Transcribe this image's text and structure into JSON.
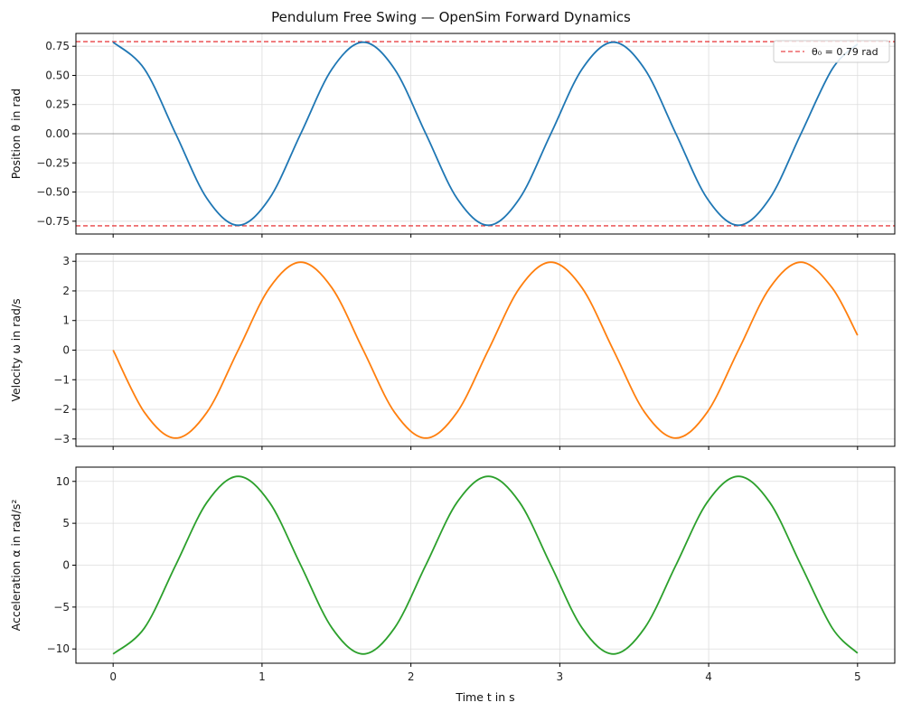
{
  "figure": {
    "title": "Pendulum Free Swing — OpenSim Forward Dynamics",
    "xlabel": "Time t in s"
  },
  "chart_data": [
    {
      "type": "line",
      "ylabel": "Position θ in rad",
      "xlim": [
        -0.25,
        5.25
      ],
      "ylim": [
        -0.86,
        0.86
      ],
      "xticks": [
        0,
        1,
        2,
        3,
        4,
        5
      ],
      "yticks": [
        -0.75,
        -0.5,
        -0.25,
        0.0,
        0.25,
        0.5,
        0.75
      ],
      "ytick_labels": [
        "−0.75",
        "−0.50",
        "−0.25",
        "0.00",
        "0.25",
        "0.50",
        "0.75"
      ],
      "grid": true,
      "legend": {
        "placement": "top-right",
        "entries": [
          {
            "label": "θ₀ = 0.79 rad",
            "style": "dashed",
            "color": "#e31a1c"
          }
        ]
      },
      "reference_lines": [
        {
          "y": 0.79,
          "color": "#e31a1c",
          "style": "dashed"
        },
        {
          "y": -0.79,
          "color": "#e31a1c",
          "style": "dashed"
        },
        {
          "y": 0.0,
          "color": "#888888",
          "style": "solid"
        }
      ],
      "series": [
        {
          "color": "#1f77b4",
          "points": [
            [
              0,
              0.785
            ],
            [
              0.21,
              0.555
            ],
            [
              0.42,
              0.0
            ],
            [
              0.63,
              -0.555
            ],
            [
              0.84,
              -0.785
            ],
            [
              1.05,
              -0.555
            ],
            [
              1.26,
              0.0
            ],
            [
              1.47,
              0.555
            ],
            [
              1.68,
              0.785
            ],
            [
              1.89,
              0.555
            ],
            [
              2.1,
              0.0
            ],
            [
              2.31,
              -0.555
            ],
            [
              2.52,
              -0.785
            ],
            [
              2.73,
              -0.555
            ],
            [
              2.94,
              0.0
            ],
            [
              3.15,
              0.555
            ],
            [
              3.36,
              0.785
            ],
            [
              3.57,
              0.555
            ],
            [
              3.78,
              0.0
            ],
            [
              3.99,
              -0.555
            ],
            [
              4.2,
              -0.785
            ],
            [
              4.41,
              -0.555
            ],
            [
              4.62,
              0.0
            ],
            [
              4.83,
              0.555
            ],
            [
              5.0,
              0.77
            ]
          ]
        }
      ]
    },
    {
      "type": "line",
      "ylabel": "Velocity ω in rad/s",
      "xlim": [
        -0.25,
        5.25
      ],
      "ylim": [
        -3.25,
        3.25
      ],
      "xticks": [
        0,
        1,
        2,
        3,
        4,
        5
      ],
      "yticks": [
        -3,
        -2,
        -1,
        0,
        1,
        2,
        3
      ],
      "ytick_labels": [
        "−3",
        "−2",
        "−1",
        "0",
        "1",
        "2",
        "3"
      ],
      "grid": true,
      "series": [
        {
          "color": "#ff7f0e",
          "points": [
            [
              0,
              0.0
            ],
            [
              0.21,
              -2.1
            ],
            [
              0.42,
              -2.97
            ],
            [
              0.63,
              -2.1
            ],
            [
              0.84,
              0.0
            ],
            [
              1.05,
              2.1
            ],
            [
              1.26,
              2.97
            ],
            [
              1.47,
              2.1
            ],
            [
              1.68,
              0.0
            ],
            [
              1.89,
              -2.1
            ],
            [
              2.1,
              -2.97
            ],
            [
              2.31,
              -2.1
            ],
            [
              2.52,
              0.0
            ],
            [
              2.73,
              2.1
            ],
            [
              2.94,
              2.97
            ],
            [
              3.15,
              2.1
            ],
            [
              3.36,
              0.0
            ],
            [
              3.57,
              -2.1
            ],
            [
              3.78,
              -2.97
            ],
            [
              3.99,
              -2.1
            ],
            [
              4.2,
              0.0
            ],
            [
              4.41,
              2.1
            ],
            [
              4.62,
              2.97
            ],
            [
              4.83,
              2.1
            ],
            [
              5.0,
              0.5
            ]
          ]
        }
      ]
    },
    {
      "type": "line",
      "ylabel": "Acceleration α in rad/s²",
      "xlim": [
        -0.25,
        5.25
      ],
      "ylim": [
        -11.7,
        11.7
      ],
      "xticks": [
        0,
        1,
        2,
        3,
        4,
        5
      ],
      "xtick_labels": [
        "0",
        "1",
        "2",
        "3",
        "4",
        "5"
      ],
      "yticks": [
        -10,
        -5,
        0,
        5,
        10
      ],
      "ytick_labels": [
        "−10",
        "−5",
        "0",
        "5",
        "10"
      ],
      "grid": true,
      "series": [
        {
          "color": "#2ca02c",
          "points": [
            [
              0,
              -10.6
            ],
            [
              0.21,
              -7.5
            ],
            [
              0.42,
              0.0
            ],
            [
              0.63,
              7.5
            ],
            [
              0.84,
              10.6
            ],
            [
              1.05,
              7.5
            ],
            [
              1.26,
              0.0
            ],
            [
              1.47,
              -7.5
            ],
            [
              1.68,
              -10.6
            ],
            [
              1.89,
              -7.5
            ],
            [
              2.1,
              0.0
            ],
            [
              2.31,
              7.5
            ],
            [
              2.52,
              10.6
            ],
            [
              2.73,
              7.5
            ],
            [
              2.94,
              0.0
            ],
            [
              3.15,
              -7.5
            ],
            [
              3.36,
              -10.6
            ],
            [
              3.57,
              -7.5
            ],
            [
              3.78,
              0.0
            ],
            [
              3.99,
              7.5
            ],
            [
              4.2,
              10.6
            ],
            [
              4.41,
              7.5
            ],
            [
              4.62,
              0.0
            ],
            [
              4.83,
              -7.5
            ],
            [
              5.0,
              -10.5
            ]
          ]
        }
      ]
    }
  ]
}
